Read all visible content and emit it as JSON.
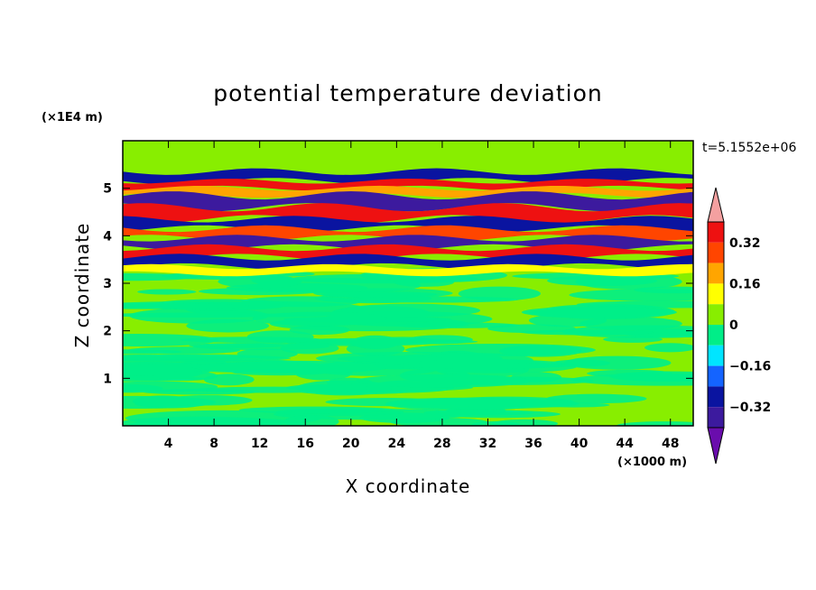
{
  "chart_data": {
    "type": "heatmap",
    "title": "potential temperature deviation",
    "xlabel": "X coordinate",
    "ylabel": "Z coordinate",
    "x_unit": "(×1000 m)",
    "y_unit": "(×1E4 m)",
    "time_label": "t=5.1552e+06",
    "xlim": [
      0,
      50
    ],
    "ylim": [
      0,
      6
    ],
    "x_ticks": [
      "4",
      "8",
      "12",
      "16",
      "20",
      "24",
      "28",
      "32",
      "36",
      "40",
      "44",
      "48"
    ],
    "y_ticks": [
      "1",
      "2",
      "3",
      "4",
      "5"
    ],
    "colorbar": {
      "levels": [
        -0.4,
        -0.32,
        -0.24,
        -0.16,
        -0.08,
        0,
        0.08,
        0.16,
        0.24,
        0.32,
        0.4
      ],
      "labels": [
        "0.32",
        "0.16",
        "0",
        "−0.16",
        "−0.32"
      ],
      "colors": [
        "#6a0dad",
        "#3c1a9e",
        "#0a14a0",
        "#1464ff",
        "#00e5ff",
        "#00ee88",
        "#88ee00",
        "#ffff00",
        "#ffa500",
        "#ff4500",
        "#ee1111",
        "#f4a0a0"
      ],
      "extend": "both"
    },
    "bands": [
      {
        "z": [
          5.15,
          5.35
        ],
        "level": -0.32
      },
      {
        "z": [
          5.0,
          5.15
        ],
        "level": 0.35
      },
      {
        "z": [
          4.85,
          5.0
        ],
        "level": 0.2
      },
      {
        "z": [
          4.6,
          4.85
        ],
        "level": -0.36
      },
      {
        "z": [
          4.35,
          4.6
        ],
        "level": 0.36
      },
      {
        "z": [
          4.15,
          4.35
        ],
        "level": -0.3
      },
      {
        "z": [
          3.95,
          4.15
        ],
        "level": 0.28
      },
      {
        "z": [
          3.75,
          3.95
        ],
        "level": -0.34
      },
      {
        "z": [
          3.55,
          3.75
        ],
        "level": 0.34
      },
      {
        "z": [
          3.35,
          3.55
        ],
        "level": -0.3
      },
      {
        "z": [
          3.2,
          3.35
        ],
        "level": 0.1
      }
    ],
    "background_level": 0.02,
    "lower_region_z": [
      0,
      3.2
    ]
  }
}
